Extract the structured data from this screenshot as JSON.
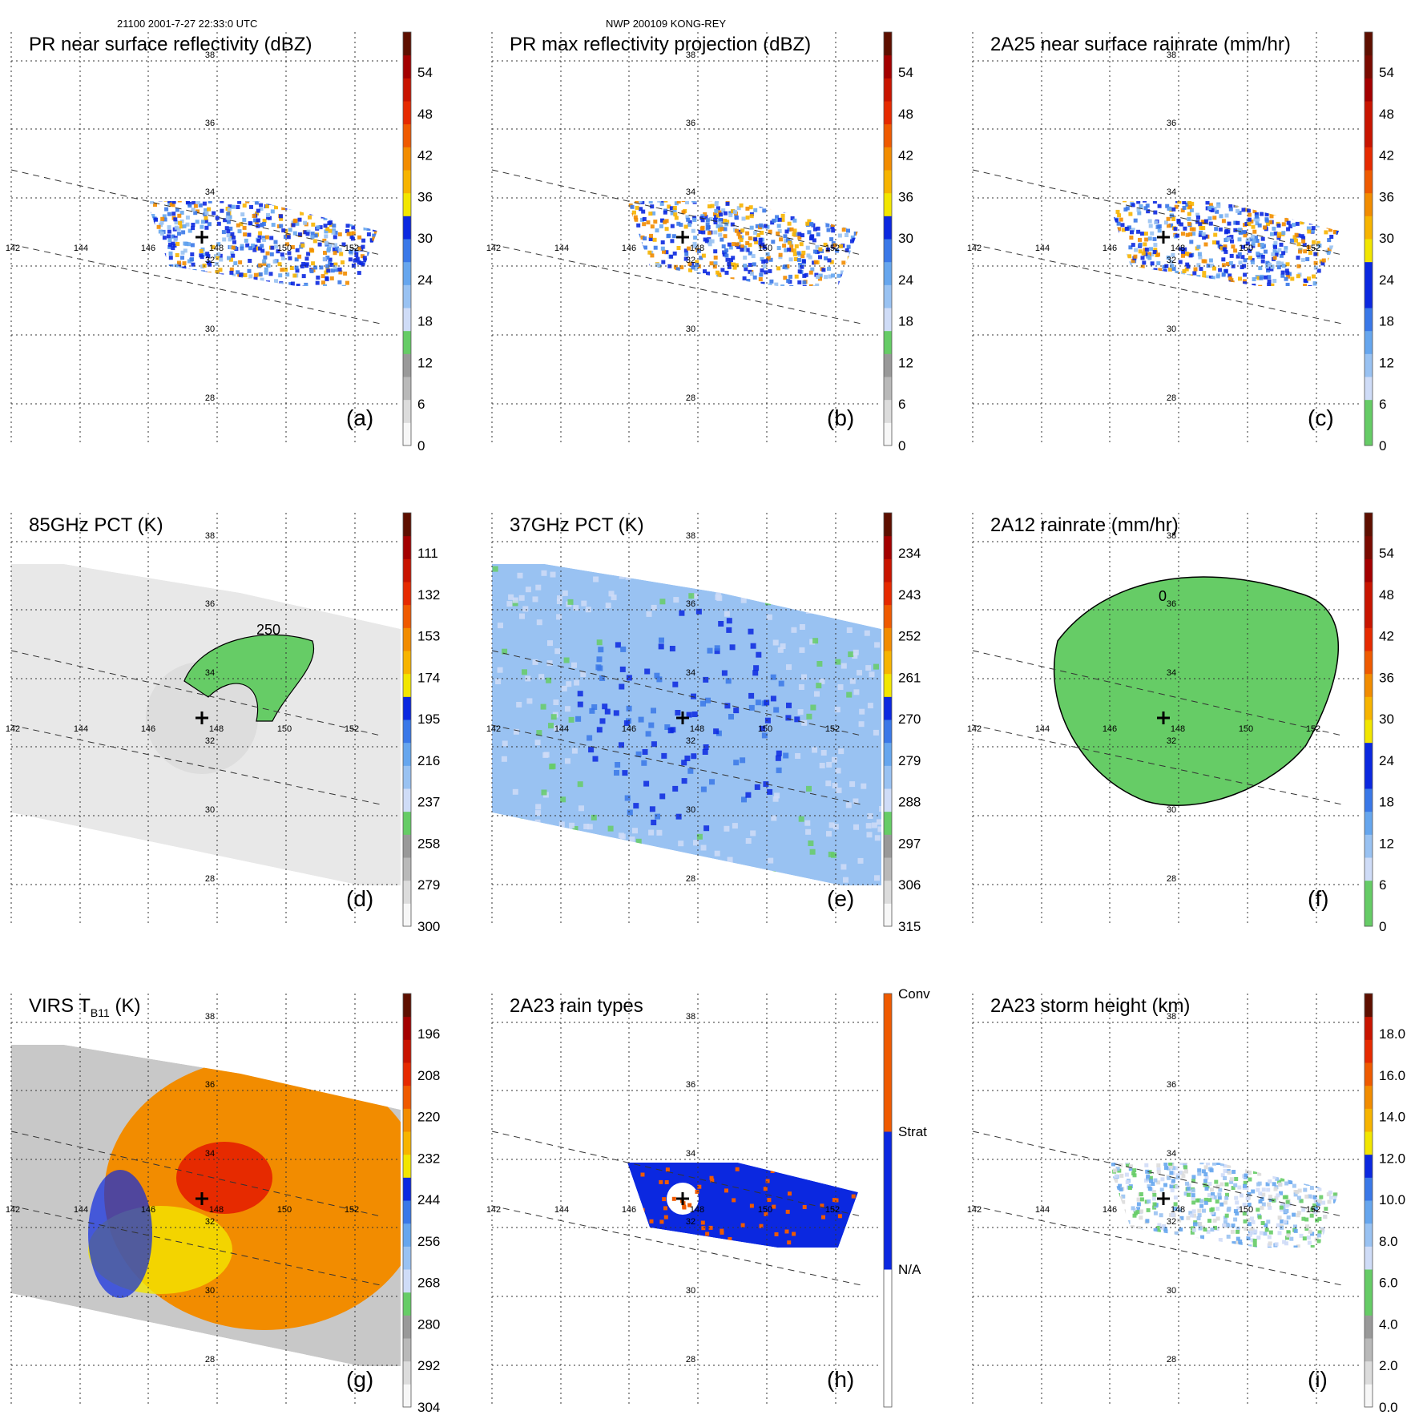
{
  "header": {
    "left": "21100 2001-7-27 22:33:0 UTC",
    "center": "NWP 200109 KONG-REY"
  },
  "map": {
    "lat_labels": [
      "38",
      "36",
      "34",
      "32",
      "30",
      "28"
    ],
    "lon_labels": [
      "142",
      "144",
      "146",
      "148",
      "150",
      "152"
    ]
  },
  "panels": [
    {
      "id": "a",
      "letter": "(a)",
      "title": "PR near surface reflectivity (dBZ)",
      "title_sub": "",
      "title_after": "",
      "cbar_ticks": [
        "54",
        "48",
        "42",
        "36",
        "30",
        "24",
        "18",
        "12",
        "6",
        "0"
      ],
      "cbar_colors": [
        "#f7f7f7",
        "#dcdcdc",
        "#b9b9b9",
        "#999999",
        "#66cc66",
        "#cfdcf7",
        "#99c2f2",
        "#66a6ee",
        "#3a78e8",
        "#0b28e0",
        "#f2e600",
        "#f7b400",
        "#f28c00",
        "#ef5a00",
        "#e62a00",
        "#c81400",
        "#a30000",
        "#5e0f00"
      ],
      "scene": "swath"
    },
    {
      "id": "b",
      "letter": "(b)",
      "title": "PR max reflectivity projection (dBZ)",
      "title_sub": "",
      "title_after": "",
      "cbar_ticks": [
        "54",
        "48",
        "42",
        "36",
        "30",
        "24",
        "18",
        "12",
        "6",
        "0"
      ],
      "cbar_colors": [
        "#f7f7f7",
        "#dcdcdc",
        "#b9b9b9",
        "#999999",
        "#66cc66",
        "#cfdcf7",
        "#99c2f2",
        "#66a6ee",
        "#3a78e8",
        "#0b28e0",
        "#f2e600",
        "#f7b400",
        "#f28c00",
        "#ef5a00",
        "#e62a00",
        "#c81400",
        "#a30000",
        "#5e0f00"
      ],
      "scene": "swath"
    },
    {
      "id": "c",
      "letter": "(c)",
      "title": "2A25 near surface rainrate (mm/hr)",
      "title_sub": "",
      "title_after": "",
      "cbar_ticks": [
        "54",
        "48",
        "42",
        "36",
        "30",
        "24",
        "18",
        "12",
        "6",
        "0"
      ],
      "cbar_colors": [
        "#66cc66",
        "#66cc66",
        "#cfdcf7",
        "#99c2f2",
        "#66a6ee",
        "#3a78e8",
        "#0b28e0",
        "#0b28e0",
        "#f2e600",
        "#f7b400",
        "#f28c00",
        "#ef5a00",
        "#e62a00",
        "#c81400",
        "#c81400",
        "#a30000",
        "#7a0a00",
        "#5e0f00"
      ],
      "scene": "swath"
    },
    {
      "id": "d",
      "letter": "(d)",
      "title": "85GHz PCT (K)",
      "title_sub": "",
      "title_after": "",
      "cbar_ticks": [
        "111",
        "132",
        "153",
        "174",
        "195",
        "216",
        "237",
        "258",
        "279",
        "300"
      ],
      "cbar_colors": [
        "#f7f7f7",
        "#dcdcdc",
        "#b9b9b9",
        "#999999",
        "#66cc66",
        "#cfdcf7",
        "#99c2f2",
        "#66a6ee",
        "#3a78e8",
        "#0b28e0",
        "#f2e600",
        "#f7b400",
        "#f28c00",
        "#ef5a00",
        "#e62a00",
        "#c81400",
        "#a30000",
        "#5e0f00"
      ],
      "scene": "tmi-gray",
      "contour_label": "250"
    },
    {
      "id": "e",
      "letter": "(e)",
      "title": "37GHz PCT (K)",
      "title_sub": "",
      "title_after": "",
      "cbar_ticks": [
        "234",
        "243",
        "252",
        "261",
        "270",
        "279",
        "288",
        "297",
        "306",
        "315"
      ],
      "cbar_colors": [
        "#f7f7f7",
        "#dcdcdc",
        "#b9b9b9",
        "#999999",
        "#66cc66",
        "#cfdcf7",
        "#99c2f2",
        "#66a6ee",
        "#3a78e8",
        "#0b28e0",
        "#f2e600",
        "#f7b400",
        "#f28c00",
        "#ef5a00",
        "#e62a00",
        "#c81400",
        "#a30000",
        "#5e0f00"
      ],
      "scene": "tmi-blue"
    },
    {
      "id": "f",
      "letter": "(f)",
      "title": "2A12 rainrate (mm/hr)",
      "title_sub": "",
      "title_after": "",
      "cbar_ticks": [
        "54",
        "48",
        "42",
        "36",
        "30",
        "24",
        "18",
        "12",
        "6",
        "0"
      ],
      "cbar_colors": [
        "#66cc66",
        "#66cc66",
        "#cfdcf7",
        "#99c2f2",
        "#66a6ee",
        "#3a78e8",
        "#0b28e0",
        "#0b28e0",
        "#f2e600",
        "#f7b400",
        "#f28c00",
        "#ef5a00",
        "#e62a00",
        "#c81400",
        "#c81400",
        "#a30000",
        "#7a0a00",
        "#5e0f00"
      ],
      "scene": "tmi-green",
      "contour_label": "0"
    },
    {
      "id": "g",
      "letter": "(g)",
      "title": "VIRS T",
      "title_sub": "B11",
      "title_after": " (K)",
      "cbar_ticks": [
        "196",
        "208",
        "220",
        "232",
        "244",
        "256",
        "268",
        "280",
        "292",
        "304"
      ],
      "cbar_colors": [
        "#f7f7f7",
        "#dcdcdc",
        "#b9b9b9",
        "#999999",
        "#66cc66",
        "#cfdcf7",
        "#99c2f2",
        "#66a6ee",
        "#3a78e8",
        "#0b28e0",
        "#f2e600",
        "#f7b400",
        "#f28c00",
        "#ef5a00",
        "#e62a00",
        "#c81400",
        "#a30000",
        "#5e0f00"
      ],
      "scene": "virs"
    },
    {
      "id": "h",
      "letter": "(h)",
      "title": "2A23 rain types",
      "title_sub": "",
      "title_after": "",
      "cbar_ticks": [
        "Conv",
        "Strat",
        "N/A"
      ],
      "cbar_colors": [
        "#ffffff",
        "#0b28e0",
        "#ef5a00"
      ],
      "scene": "raintype"
    },
    {
      "id": "i",
      "letter": "(i)",
      "title": "2A23 storm height (km)",
      "title_sub": "",
      "title_after": "",
      "cbar_ticks": [
        "18.0",
        "16.0",
        "14.0",
        "12.0",
        "10.0",
        "8.0",
        "6.0",
        "4.0",
        "2.0",
        "0.0"
      ],
      "cbar_colors": [
        "#f7f7f7",
        "#dcdcdc",
        "#b9b9b9",
        "#999999",
        "#66cc66",
        "#66cc66",
        "#cfdcf7",
        "#99c2f2",
        "#66a6ee",
        "#3a78e8",
        "#0b28e0",
        "#f2e600",
        "#f7b400",
        "#f28c00",
        "#ef5a00",
        "#e62a00",
        "#c81400",
        "#5e0f00"
      ],
      "scene": "swath-light"
    }
  ]
}
